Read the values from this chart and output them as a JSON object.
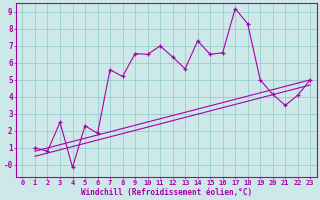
{
  "bg_color": "#cce8e8",
  "line_color": "#aa00aa",
  "grid_color": "#99cccc",
  "xlabel": "Windchill (Refroidissement éolien,°C)",
  "xlim": [
    -0.5,
    23.5
  ],
  "ylim": [
    -0.7,
    9.5
  ],
  "yticks": [
    0,
    1,
    2,
    3,
    4,
    5,
    6,
    7,
    8,
    9
  ],
  "ytick_labels": [
    "-0",
    "1",
    "2",
    "3",
    "4",
    "5",
    "6",
    "7",
    "8",
    "9"
  ],
  "xticks": [
    0,
    1,
    2,
    3,
    4,
    5,
    6,
    7,
    8,
    9,
    10,
    11,
    12,
    13,
    14,
    15,
    16,
    17,
    18,
    19,
    20,
    21,
    22,
    23
  ],
  "line1_x": [
    1,
    2,
    3,
    4,
    5,
    6,
    7,
    8,
    9,
    10,
    11,
    12,
    13,
    14,
    15,
    16,
    17,
    18,
    19,
    20,
    21,
    22,
    23
  ],
  "line1_y": [
    1.0,
    0.8,
    2.5,
    -0.15,
    2.3,
    1.85,
    5.6,
    5.2,
    6.55,
    6.5,
    7.0,
    6.35,
    5.65,
    7.3,
    6.5,
    6.6,
    9.2,
    8.3,
    5.0,
    4.15,
    3.5,
    4.1,
    5.0
  ],
  "line2_x": [
    1,
    23
  ],
  "line2_y": [
    0.8,
    5.0
  ],
  "line3_x": [
    1,
    23
  ],
  "line3_y": [
    0.5,
    4.7
  ]
}
